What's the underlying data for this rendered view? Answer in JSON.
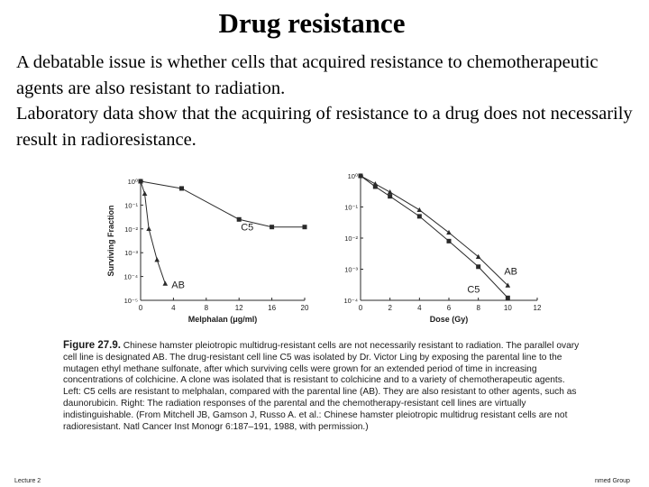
{
  "slide": {
    "title": "Drug resistance",
    "paragraphs": [
      "A debatable issue is whether cells that acquired resistance to chemotherapeutic agents are also resistant to radiation.",
      "Laboratory data show that the acquiring of resistance to a drug does not necessarily result in radioresistance."
    ]
  },
  "caption": {
    "label": "Figure 27.9.",
    "text": "Chinese hamster pleiotropic multidrug-resistant cells are not necessarily resistant to radiation. The parallel ovary cell line is designated AB. The drug-resistant cell line C5 was isolated by Dr. Victor Ling by exposing the parental line to the mutagen ethyl methane sulfonate, after which surviving cells were grown for an extended period of time in increasing concentrations of colchicine. A clone was isolated that is resistant to colchicine and to a variety of chemotherapeutic agents. Left: C5 cells are resistant to melphalan, compared with the parental line (AB). They are also resistant to other agents, such as daunorubicin. Right: The radiation responses of the parental and the chemotherapy-resistant cell lines are virtually indistinguishable. (From Mitchell JB, Gamson J, Russo A. et al.: Chinese hamster pleiotropic multidrug resistant cells are not radioresistant. Natl Cancer Inst Monogr 6:187–191, 1988, with permission.)"
  },
  "footer": {
    "left": "Lecture 2",
    "right": "nmed Group"
  },
  "chart_data": [
    {
      "type": "line",
      "title": "",
      "xlabel": "Melphalan (μg/ml)",
      "ylabel": "Surviving Fraction",
      "xlim": [
        0,
        20
      ],
      "ylim_log10": [
        -5,
        0
      ],
      "log_y": true,
      "x_ticks": [
        "0",
        "4",
        "8",
        "12",
        "16",
        "20"
      ],
      "y_ticks": [
        "10⁰",
        "10⁻¹",
        "10⁻²",
        "10⁻³",
        "10⁻⁴",
        "10⁻⁵"
      ],
      "series": [
        {
          "name": "C5",
          "marker": "square",
          "x": [
            0,
            5,
            12,
            16,
            20
          ],
          "y": [
            1,
            0.5,
            0.025,
            0.012,
            0.012
          ]
        },
        {
          "name": "AB",
          "marker": "triangle",
          "x": [
            0,
            0.5,
            1,
            2,
            3
          ],
          "y": [
            1,
            0.3,
            0.01,
            0.0005,
            5e-05
          ]
        }
      ]
    },
    {
      "type": "line",
      "title": "",
      "xlabel": "Dose (Gy)",
      "ylabel": "",
      "xlim": [
        0,
        12
      ],
      "ylim_log10": [
        -4,
        0
      ],
      "log_y": true,
      "x_ticks": [
        "0",
        "2",
        "4",
        "6",
        "8",
        "10",
        "12"
      ],
      "y_ticks": [
        "10⁰",
        "10⁻¹",
        "10⁻²",
        "10⁻³",
        "10⁻⁴"
      ],
      "series": [
        {
          "name": "AB",
          "marker": "triangle",
          "x": [
            0,
            1,
            2,
            4,
            6,
            8,
            10
          ],
          "y": [
            1,
            0.55,
            0.3,
            0.08,
            0.015,
            0.0025,
            0.0003
          ]
        },
        {
          "name": "C5",
          "marker": "square",
          "x": [
            0,
            1,
            2,
            4,
            6,
            8,
            10
          ],
          "y": [
            1,
            0.45,
            0.22,
            0.05,
            0.008,
            0.0012,
            0.00012
          ]
        }
      ]
    }
  ]
}
